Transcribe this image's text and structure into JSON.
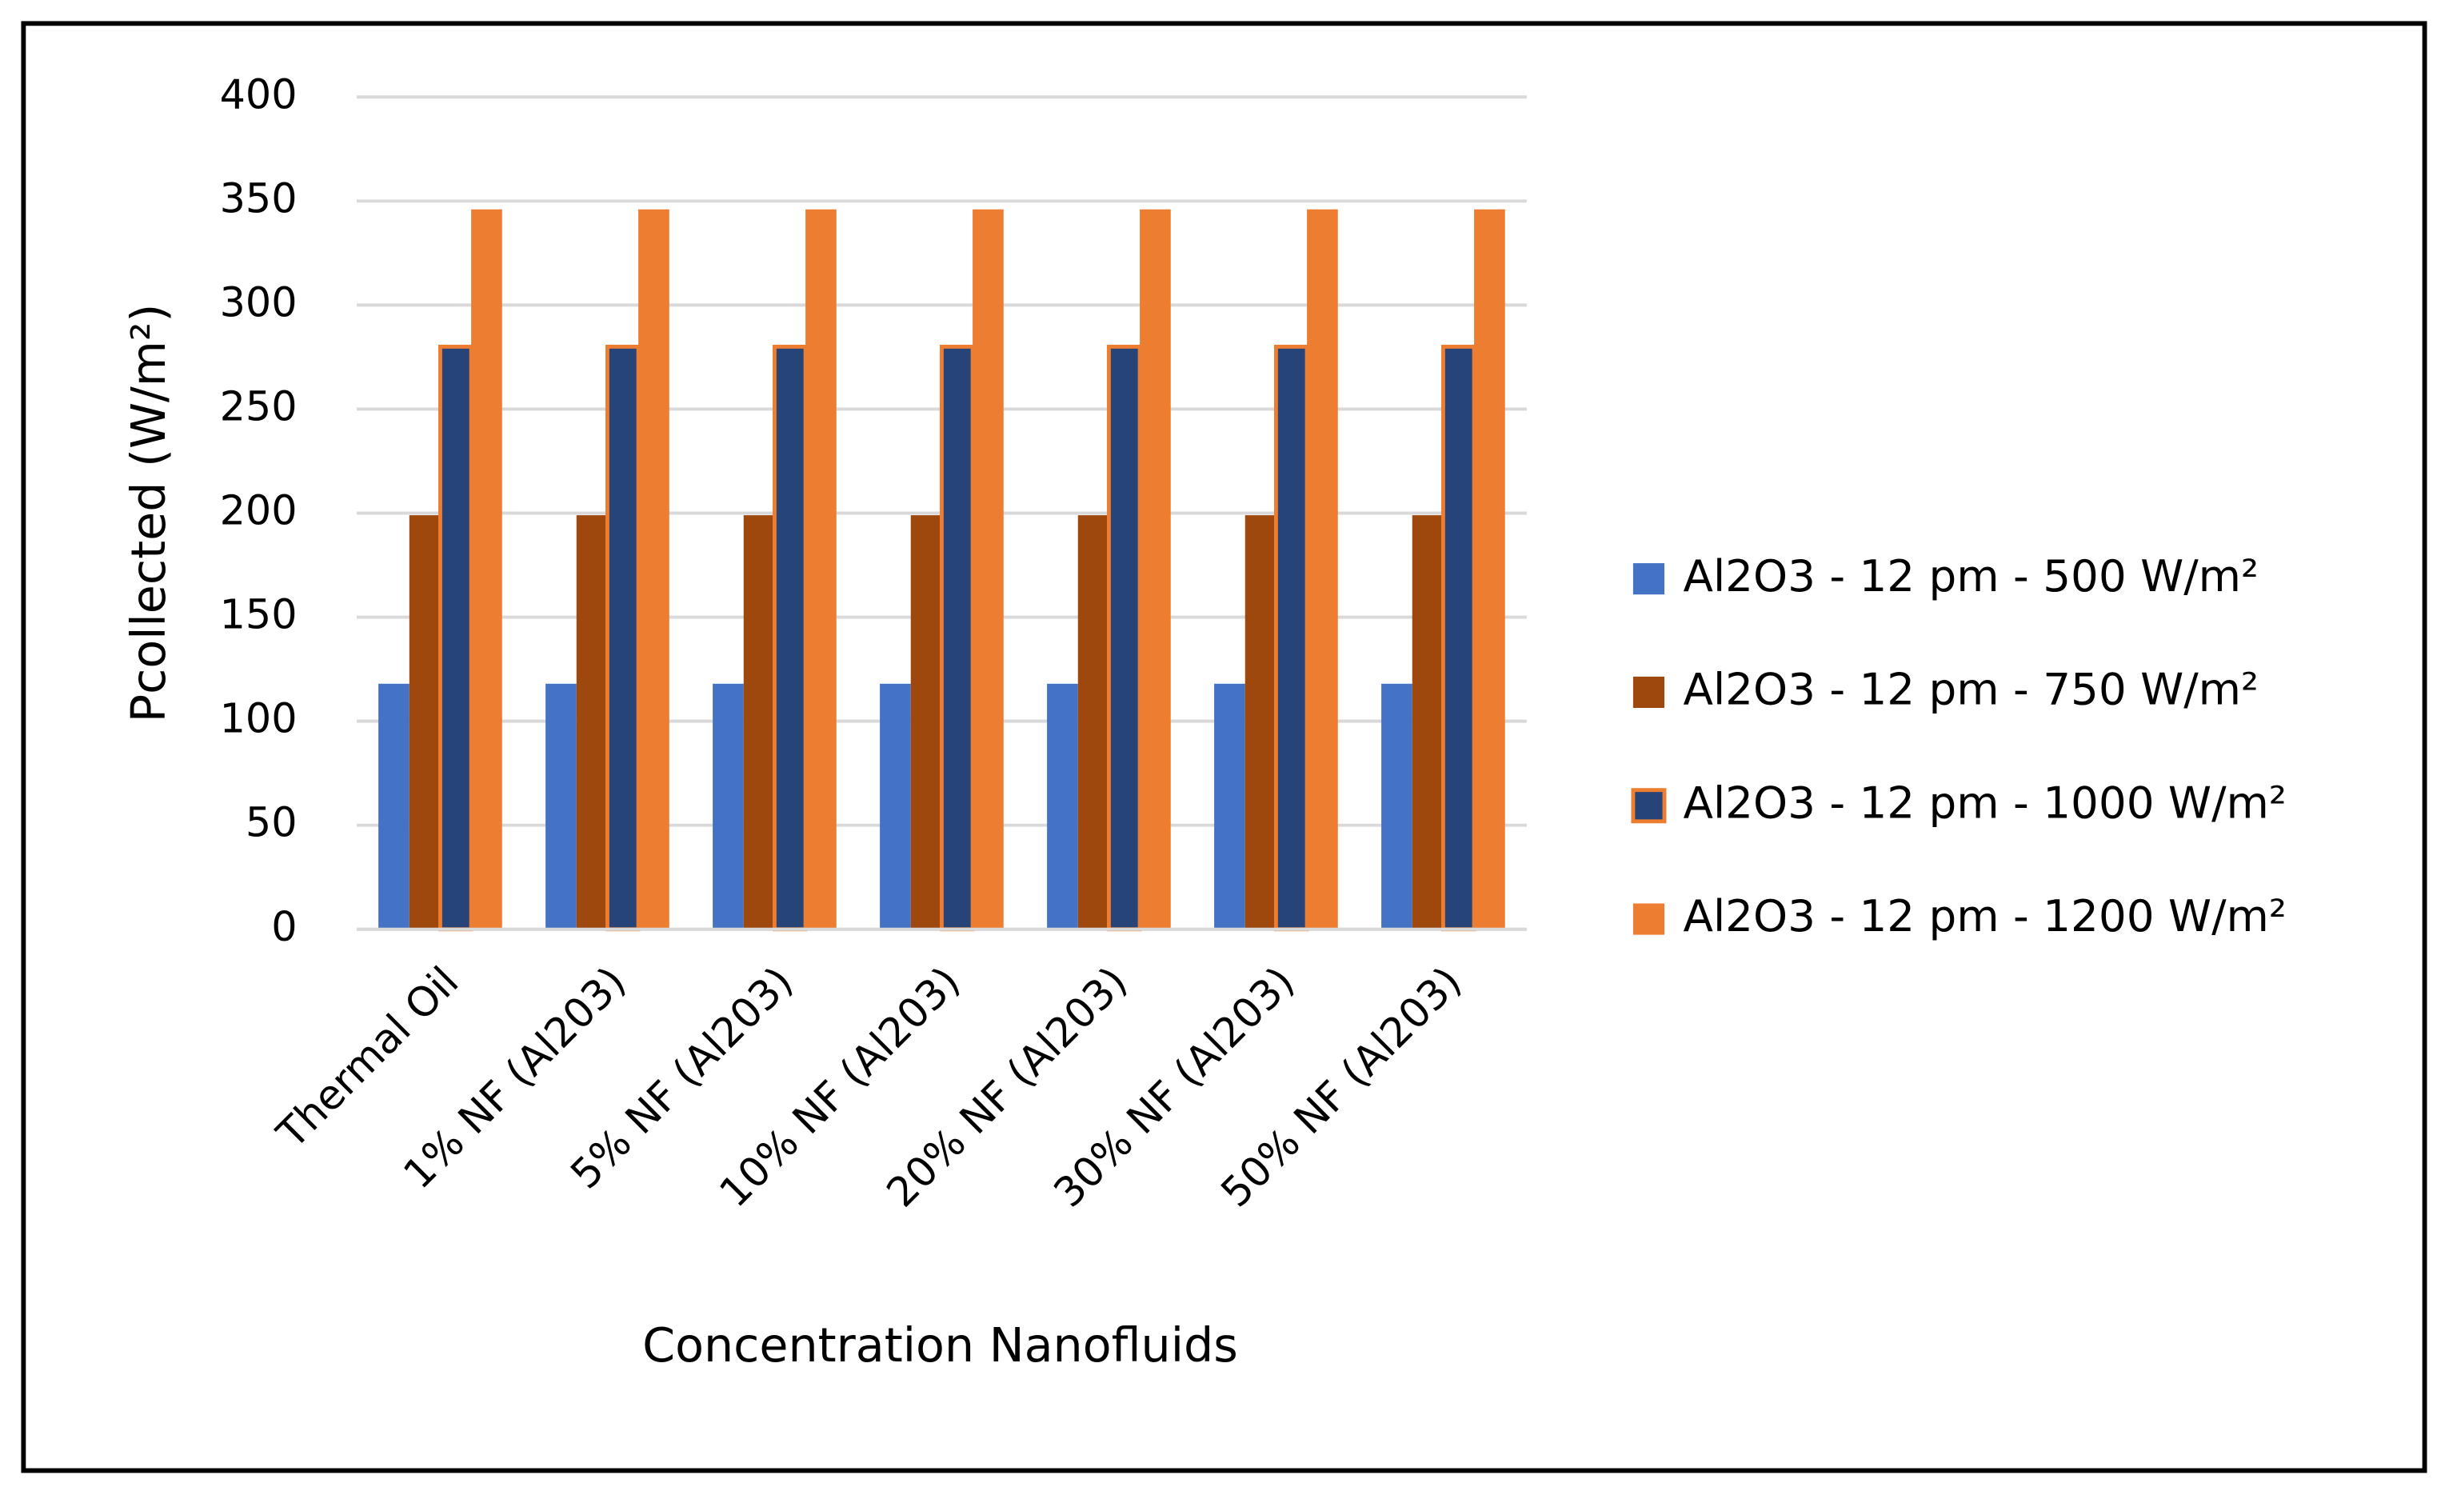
{
  "chart_data": {
    "type": "bar",
    "x_label": "Concentration Nanofluids",
    "y_label": "Pcollected (W/m²)",
    "categories": [
      "Thermal Oil",
      "1% NF (Al203)",
      "5% NF (Al203)",
      "10% NF (Al203)",
      "20% NF (Al203)",
      "30% NF (Al203)",
      "50% NF (Al203)"
    ],
    "series": [
      {
        "name": "Al2O3 - 12 pm - 500 W/m²",
        "color": "#4472c4",
        "values": [
          118,
          118,
          118,
          118,
          118,
          118,
          118
        ]
      },
      {
        "name": "Al2O3 - 12 pm - 750 W/m²",
        "color": "#9e480e",
        "values": [
          199,
          199,
          199,
          199,
          199,
          199,
          199
        ]
      },
      {
        "name": "Al2O3 - 12 pm - 1000 W/m²",
        "color": "#264478",
        "edgecolor": "#ed7d31",
        "values": [
          280,
          280,
          280,
          280,
          280,
          280,
          280
        ]
      },
      {
        "name": "Al2O3 - 12 pm - 1200 W/m²",
        "color": "#ed7d31",
        "values": [
          346,
          346,
          346,
          346,
          346,
          346,
          346
        ]
      }
    ],
    "ylim": [
      0,
      400
    ],
    "yticks": [
      0,
      50,
      100,
      150,
      200,
      250,
      300,
      350,
      400
    ],
    "grid": true,
    "legend": "right"
  }
}
